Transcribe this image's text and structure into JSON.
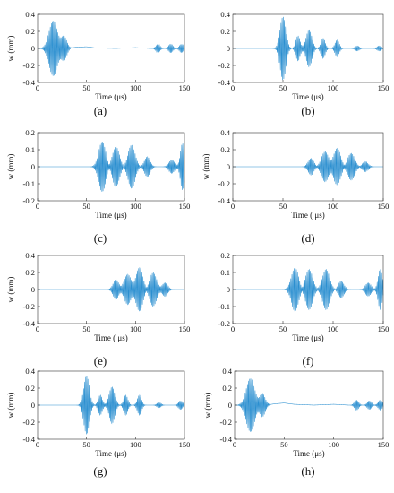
{
  "colors": {
    "signal": "#2b8fd0",
    "axis": "#333333"
  },
  "chart_data": [
    {
      "id": "a",
      "type": "line",
      "title": "",
      "caption": "(a)",
      "xlabel": "Time (μs)",
      "ylabel": "w (mm)",
      "xlim": [
        0,
        150
      ],
      "ylim": [
        -0.4,
        0.4
      ],
      "xticks": [
        "0",
        "50",
        "100",
        "150"
      ],
      "yticks": [
        "0.4",
        "0.2",
        "0",
        "-0.2",
        "-0.4"
      ],
      "grid": false,
      "packets": [
        {
          "center": 16,
          "amp": 0.33,
          "width": 6,
          "freq": 0.9
        },
        {
          "center": 27,
          "amp": 0.14,
          "width": 4,
          "freq": 0.9
        },
        {
          "center": 123,
          "amp": 0.05,
          "width": 3,
          "freq": 0.9
        },
        {
          "center": 136,
          "amp": 0.05,
          "width": 3,
          "freq": 0.9
        },
        {
          "center": 147,
          "amp": 0.05,
          "width": 3,
          "freq": 0.9
        }
      ],
      "baseline": [
        [
          30,
          0
        ],
        [
          40,
          0.015
        ],
        [
          50,
          0.02
        ],
        [
          60,
          0.005
        ],
        [
          80,
          0.0
        ],
        [
          100,
          0.01
        ],
        [
          115,
          0.0
        ]
      ]
    },
    {
      "id": "b",
      "type": "line",
      "title": "",
      "caption": "(b)",
      "xlabel": "Time (μs)",
      "ylabel": "",
      "xlim": [
        0,
        150
      ],
      "ylim": [
        -0.4,
        0.4
      ],
      "xticks": [
        "0",
        "50",
        "100",
        "150"
      ],
      "yticks": [
        "0.4",
        "0.2",
        "0",
        "-0.2",
        "-0.4"
      ],
      "grid": false,
      "packets": [
        {
          "center": 50,
          "amp": 0.38,
          "width": 4,
          "freq": 0.9
        },
        {
          "center": 65,
          "amp": 0.15,
          "width": 3,
          "freq": 0.9
        },
        {
          "center": 76,
          "amp": 0.22,
          "width": 4,
          "freq": 0.9
        },
        {
          "center": 90,
          "amp": 0.12,
          "width": 3,
          "freq": 0.9
        },
        {
          "center": 104,
          "amp": 0.1,
          "width": 3,
          "freq": 0.9
        },
        {
          "center": 124,
          "amp": 0.03,
          "width": 3,
          "freq": 0.9
        },
        {
          "center": 146,
          "amp": 0.03,
          "width": 3,
          "freq": 0.9
        }
      ],
      "baseline": []
    },
    {
      "id": "c",
      "type": "line",
      "title": "",
      "caption": "(c)",
      "xlabel": "Time (μs)",
      "ylabel": "w (mm)",
      "xlim": [
        0,
        150
      ],
      "ylim": [
        -0.2,
        0.2
      ],
      "xticks": [
        "0",
        "50",
        "100",
        "150"
      ],
      "yticks": [
        "0.2",
        "0.1",
        "0",
        "-0.1",
        "-0.2"
      ],
      "grid": false,
      "packets": [
        {
          "center": 66,
          "amp": 0.15,
          "width": 5,
          "freq": 0.9
        },
        {
          "center": 80,
          "amp": 0.12,
          "width": 5,
          "freq": 0.9
        },
        {
          "center": 96,
          "amp": 0.13,
          "width": 5,
          "freq": 0.9
        },
        {
          "center": 112,
          "amp": 0.06,
          "width": 4,
          "freq": 0.9
        },
        {
          "center": 137,
          "amp": 0.04,
          "width": 4,
          "freq": 0.9
        },
        {
          "center": 148,
          "amp": 0.14,
          "width": 3,
          "freq": 0.9
        }
      ],
      "baseline": []
    },
    {
      "id": "d",
      "type": "line",
      "title": "",
      "caption": "(d)",
      "xlabel": "Time ( μs)",
      "ylabel": "w (mm)",
      "xlim": [
        0,
        150
      ],
      "ylim": [
        -0.4,
        0.4
      ],
      "xticks": [
        "0",
        "50",
        "100",
        "150"
      ],
      "yticks": [
        "0.4",
        "0.2",
        "0",
        "-0.2",
        "-0.4"
      ],
      "grid": false,
      "packets": [
        {
          "center": 78,
          "amp": 0.1,
          "width": 4,
          "freq": 0.9
        },
        {
          "center": 92,
          "amp": 0.18,
          "width": 5,
          "freq": 0.9
        },
        {
          "center": 104,
          "amp": 0.22,
          "width": 5,
          "freq": 0.9
        },
        {
          "center": 118,
          "amp": 0.16,
          "width": 5,
          "freq": 0.9
        },
        {
          "center": 132,
          "amp": 0.06,
          "width": 4,
          "freq": 0.9
        }
      ],
      "baseline": []
    },
    {
      "id": "e",
      "type": "line",
      "title": "",
      "caption": "(e)",
      "xlabel": "Time ( μs)",
      "ylabel": "w (mm)",
      "xlim": [
        0,
        150
      ],
      "ylim": [
        -0.4,
        0.4
      ],
      "xticks": [
        "0",
        "50",
        "100",
        "150"
      ],
      "yticks": [
        "0.4",
        "0.2",
        "0",
        "-0.2",
        "-0.4"
      ],
      "grid": false,
      "packets": [
        {
          "center": 80,
          "amp": 0.12,
          "width": 4,
          "freq": 0.9
        },
        {
          "center": 92,
          "amp": 0.18,
          "width": 5,
          "freq": 0.9
        },
        {
          "center": 104,
          "amp": 0.26,
          "width": 5,
          "freq": 0.9
        },
        {
          "center": 118,
          "amp": 0.2,
          "width": 5,
          "freq": 0.9
        },
        {
          "center": 130,
          "amp": 0.08,
          "width": 4,
          "freq": 0.9
        }
      ],
      "baseline": []
    },
    {
      "id": "f",
      "type": "line",
      "title": "",
      "caption": "(f)",
      "xlabel": "Time (μs)",
      "ylabel": "",
      "xlim": [
        0,
        150
      ],
      "ylim": [
        -0.2,
        0.2
      ],
      "xticks": [
        "0",
        "50",
        "100",
        "150"
      ],
      "yticks": [
        "0.2",
        "0.1",
        "0",
        "-0.1",
        "-0.2"
      ],
      "grid": false,
      "packets": [
        {
          "center": 62,
          "amp": 0.13,
          "width": 5,
          "freq": 0.9
        },
        {
          "center": 76,
          "amp": 0.12,
          "width": 5,
          "freq": 0.9
        },
        {
          "center": 93,
          "amp": 0.12,
          "width": 5,
          "freq": 0.9
        },
        {
          "center": 108,
          "amp": 0.05,
          "width": 4,
          "freq": 0.9
        },
        {
          "center": 135,
          "amp": 0.04,
          "width": 4,
          "freq": 0.9
        },
        {
          "center": 147,
          "amp": 0.12,
          "width": 3,
          "freq": 0.9
        }
      ],
      "baseline": []
    },
    {
      "id": "g",
      "type": "line",
      "title": "",
      "caption": "(g)",
      "xlabel": "Time (μs)",
      "ylabel": "w (mm)",
      "xlim": [
        0,
        150
      ],
      "ylim": [
        -0.4,
        0.4
      ],
      "xticks": [
        "0",
        "50",
        "100",
        "150"
      ],
      "yticks": [
        "0.4",
        "0.2",
        "0",
        "-0.2",
        "-0.4"
      ],
      "grid": false,
      "packets": [
        {
          "center": 50,
          "amp": 0.35,
          "width": 4,
          "freq": 0.9
        },
        {
          "center": 64,
          "amp": 0.12,
          "width": 3,
          "freq": 0.9
        },
        {
          "center": 76,
          "amp": 0.22,
          "width": 4,
          "freq": 0.9
        },
        {
          "center": 90,
          "amp": 0.12,
          "width": 3,
          "freq": 0.9
        },
        {
          "center": 104,
          "amp": 0.12,
          "width": 3,
          "freq": 0.9
        },
        {
          "center": 124,
          "amp": 0.03,
          "width": 3,
          "freq": 0.9
        },
        {
          "center": 146,
          "amp": 0.05,
          "width": 3,
          "freq": 0.9
        }
      ],
      "baseline": []
    },
    {
      "id": "h",
      "type": "line",
      "title": "",
      "caption": "(h)",
      "xlabel": "Time (μs)",
      "ylabel": "w (mm)",
      "xlim": [
        0,
        150
      ],
      "ylim": [
        -0.4,
        0.4
      ],
      "xticks": [
        "0",
        "50",
        "100",
        "150"
      ],
      "yticks": [
        "0.4",
        "0.2",
        "0",
        "-0.2",
        "-0.4"
      ],
      "grid": false,
      "packets": [
        {
          "center": 16,
          "amp": 0.32,
          "width": 6,
          "freq": 0.9
        },
        {
          "center": 28,
          "amp": 0.14,
          "width": 4,
          "freq": 0.9
        },
        {
          "center": 123,
          "amp": 0.06,
          "width": 3,
          "freq": 0.9
        },
        {
          "center": 136,
          "amp": 0.05,
          "width": 3,
          "freq": 0.9
        },
        {
          "center": 147,
          "amp": 0.06,
          "width": 3,
          "freq": 0.9
        }
      ],
      "baseline": [
        [
          32,
          0
        ],
        [
          40,
          0.015
        ],
        [
          50,
          0.025
        ],
        [
          60,
          0.01
        ],
        [
          80,
          0.0
        ],
        [
          100,
          0.01
        ],
        [
          115,
          0.0
        ]
      ]
    }
  ]
}
